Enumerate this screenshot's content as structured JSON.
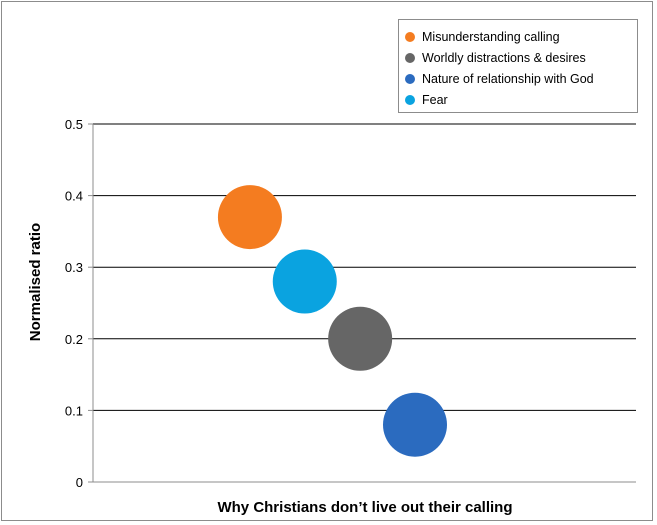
{
  "chart_data": {
    "type": "scatter",
    "title": "",
    "xlabel": "Why Christians don’t live out their calling",
    "ylabel": "Normalised ratio",
    "ylim": [
      0,
      0.5
    ],
    "yticks": [
      "0",
      "0.1",
      "0.2",
      "0.3",
      "0.4",
      "0.5"
    ],
    "xlim": [
      0,
      10
    ],
    "grid": true,
    "legend_position": "top-right",
    "series": [
      {
        "name": "Misunderstanding calling",
        "color": "#f47c20",
        "x": 2.89,
        "y": 0.37
      },
      {
        "name": "Worldly distractions & desires",
        "color": "#666666",
        "x": 4.92,
        "y": 0.2
      },
      {
        "name": "Nature of relationship with God",
        "color": "#2b6bbf",
        "x": 5.93,
        "y": 0.08
      },
      {
        "name": "Fear",
        "color": "#0aa3e0",
        "x": 3.9,
        "y": 0.28
      }
    ]
  }
}
